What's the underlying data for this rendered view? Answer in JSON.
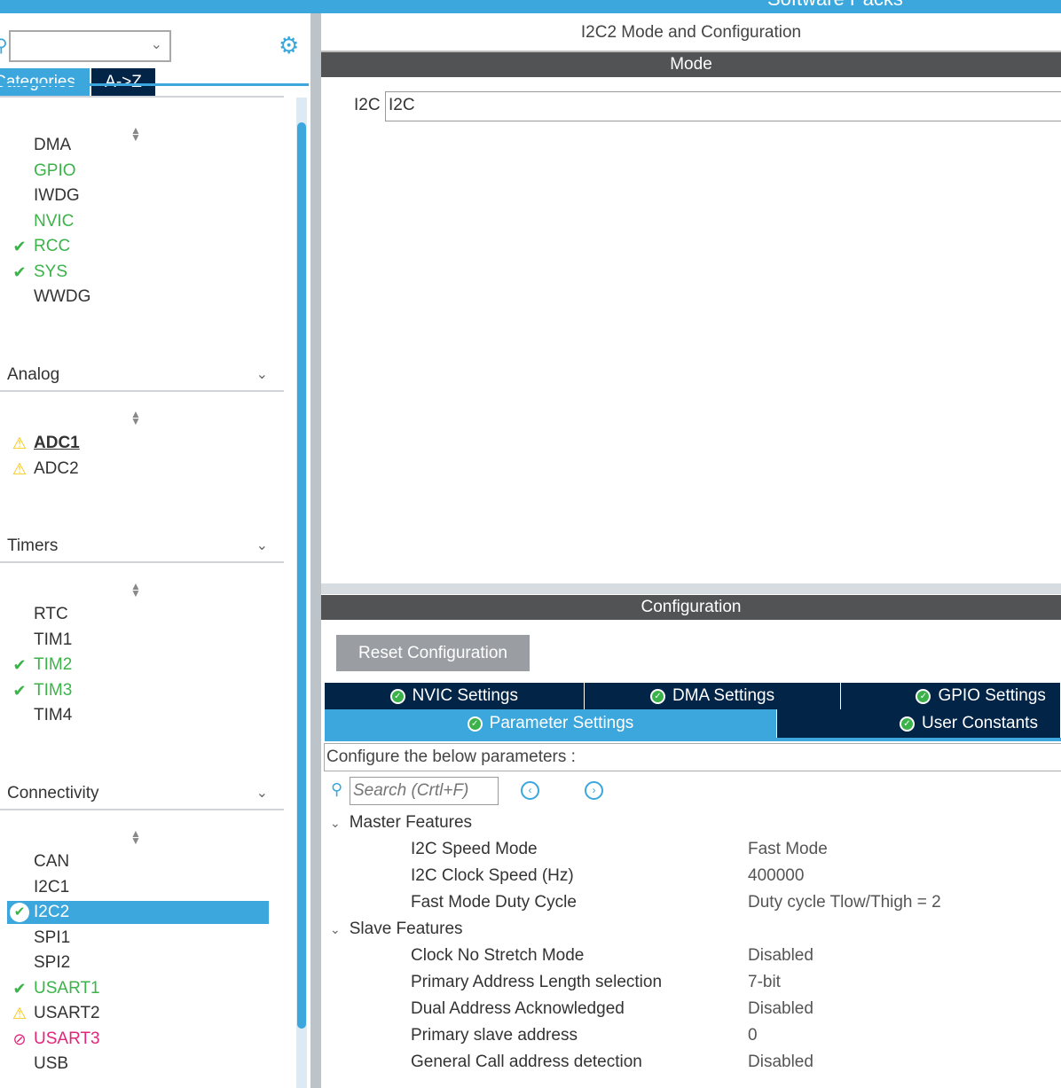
{
  "window": {
    "top_title": "Software Packs"
  },
  "sidebar": {
    "tabs": [
      {
        "label": "Categories",
        "active": true
      },
      {
        "label": "A->Z",
        "active": false
      }
    ],
    "system_items": [
      {
        "label": "DMA",
        "status": "none"
      },
      {
        "label": "GPIO",
        "status": "configured"
      },
      {
        "label": "IWDG",
        "status": "none"
      },
      {
        "label": "NVIC",
        "status": "configured"
      },
      {
        "label": "RCC",
        "status": "ok"
      },
      {
        "label": "SYS",
        "status": "ok"
      },
      {
        "label": "WWDG",
        "status": "none"
      }
    ],
    "sections": [
      {
        "title": "Analog",
        "items": [
          {
            "label": "ADC1",
            "status": "warning"
          },
          {
            "label": "ADC2",
            "status": "warning"
          }
        ]
      },
      {
        "title": "Timers",
        "items": [
          {
            "label": "RTC",
            "status": "none"
          },
          {
            "label": "TIM1",
            "status": "none"
          },
          {
            "label": "TIM2",
            "status": "ok"
          },
          {
            "label": "TIM3",
            "status": "ok"
          },
          {
            "label": "TIM4",
            "status": "none"
          }
        ]
      },
      {
        "title": "Connectivity",
        "items": [
          {
            "label": "CAN",
            "status": "none"
          },
          {
            "label": "I2C1",
            "status": "none"
          },
          {
            "label": "I2C2",
            "status": "selected"
          },
          {
            "label": "SPI1",
            "status": "none"
          },
          {
            "label": "SPI2",
            "status": "none"
          },
          {
            "label": "USART1",
            "status": "ok"
          },
          {
            "label": "USART2",
            "status": "warning"
          },
          {
            "label": "USART3",
            "status": "disabled"
          },
          {
            "label": "USB",
            "status": "none"
          }
        ]
      }
    ]
  },
  "main": {
    "title": "I2C2 Mode and Configuration",
    "mode_header": "Mode",
    "mode_label": "I2C",
    "mode_value": "I2C",
    "config_header": "Configuration",
    "reset_button": "Reset Configuration",
    "tabs_row1": [
      "NVIC Settings",
      "DMA Settings",
      "GPIO Settings"
    ],
    "tabs_row2": [
      "Parameter Settings",
      "User Constants"
    ],
    "active_tab": "Parameter Settings",
    "configure_text": "Configure the below parameters :",
    "search_placeholder": "Search (Crtl+F)",
    "groups": [
      {
        "title": "Master Features",
        "params": [
          {
            "name": "I2C Speed Mode",
            "value": "Fast Mode"
          },
          {
            "name": "I2C Clock Speed (Hz)",
            "value": "400000"
          },
          {
            "name": "Fast Mode Duty Cycle",
            "value": "Duty cycle Tlow/Thigh = 2"
          }
        ]
      },
      {
        "title": "Slave Features",
        "params": [
          {
            "name": "Clock No Stretch Mode",
            "value": "Disabled"
          },
          {
            "name": "Primary Address Length selection",
            "value": "7-bit"
          },
          {
            "name": "Dual Address Acknowledged",
            "value": "Disabled"
          },
          {
            "name": "Primary slave address",
            "value": "0"
          },
          {
            "name": "General Call address detection",
            "value": "Disabled"
          }
        ]
      }
    ]
  },
  "colors": {
    "accent": "#3ba7dc",
    "navy": "#012447",
    "ok": "#3cb34a",
    "warning": "#f5c400",
    "error": "#e0267a",
    "header": "#515355"
  }
}
